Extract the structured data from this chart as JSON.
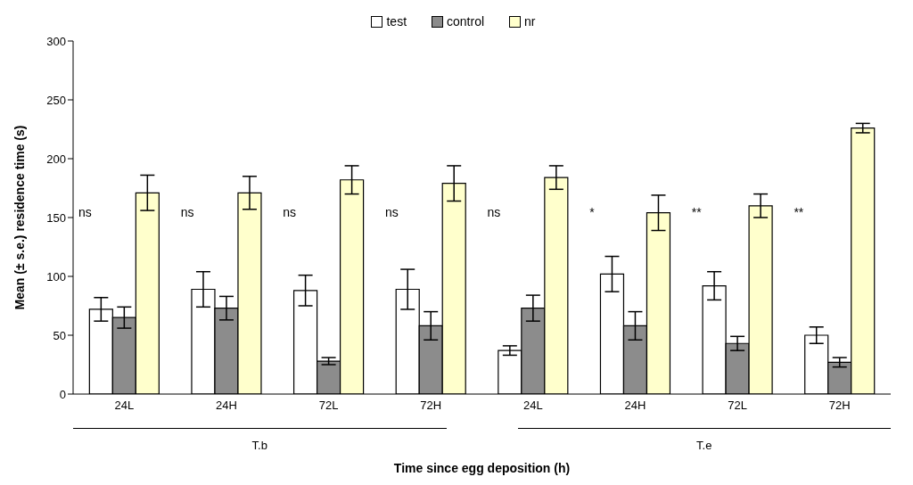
{
  "chart_data": {
    "type": "bar",
    "xlabel": "Time since egg deposition (h)",
    "ylabel": "Mean (± s.e.) residence time (s)",
    "categories": [
      "24L",
      "24H",
      "72L",
      "72H",
      "24L",
      "24H",
      "72L",
      "72H"
    ],
    "series": [
      {
        "name": "test",
        "color": "#ffffff",
        "values": [
          72,
          89,
          88,
          89,
          37,
          102,
          92,
          50
        ],
        "errors": [
          10,
          15,
          13,
          17,
          4,
          15,
          12,
          7
        ]
      },
      {
        "name": "control",
        "color": "#8c8c8c",
        "values": [
          65,
          73,
          28,
          58,
          73,
          58,
          43,
          27
        ],
        "errors": [
          9,
          10,
          3,
          12,
          11,
          12,
          6,
          4
        ]
      },
      {
        "name": "nr",
        "color": "#ffffcc",
        "values": [
          171,
          171,
          182,
          179,
          184,
          154,
          160,
          226
        ],
        "errors": [
          15,
          14,
          12,
          15,
          10,
          15,
          10,
          4
        ]
      }
    ],
    "ylim": [
      0,
      300
    ],
    "yticks": [
      0,
      50,
      100,
      150,
      200,
      250,
      300
    ],
    "grid": false,
    "legend": "top",
    "annotations": [
      "ns",
      "ns",
      "ns",
      "ns",
      "ns",
      "*",
      "**",
      "**",
      "T.b",
      "T.e"
    ]
  }
}
